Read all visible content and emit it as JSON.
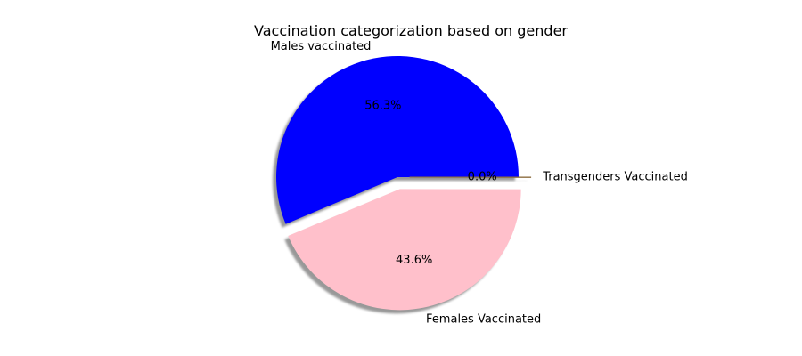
{
  "chart_data": {
    "type": "pie",
    "title": "Vaccination categorization based on gender",
    "slices": [
      {
        "label": "Males vaccinated",
        "value": 56.3,
        "pct_label": "56.3%",
        "color": "#0000ff",
        "exploded": false
      },
      {
        "label": "Females Vaccinated",
        "value": 43.6,
        "pct_label": "43.6%",
        "color": "#ffc0cb",
        "exploded": true
      },
      {
        "label": "Transgenders Vaccinated",
        "value": 0.04,
        "pct_label": "0.0%",
        "color": "#d2a679",
        "exploded": true
      }
    ],
    "shadow": true,
    "start_angle_deg": 0,
    "direction": "counterclockwise"
  }
}
